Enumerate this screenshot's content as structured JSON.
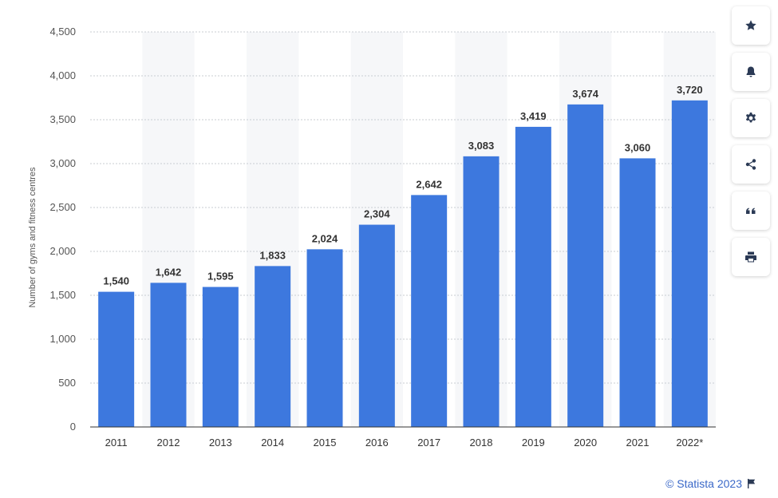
{
  "chart_data": {
    "type": "bar",
    "categories": [
      "2011",
      "2012",
      "2013",
      "2014",
      "2015",
      "2016",
      "2017",
      "2018",
      "2019",
      "2020",
      "2021",
      "2022*"
    ],
    "series": [
      {
        "values": [
          1540,
          1642,
          1595,
          1833,
          2024,
          2304,
          2642,
          3083,
          3419,
          3674,
          3060,
          3720
        ]
      }
    ],
    "data_labels": [
      "1,540",
      "1,642",
      "1,595",
      "1,833",
      "2,024",
      "2,304",
      "2,642",
      "3,083",
      "3,419",
      "3,674",
      "3,060",
      "3,720"
    ],
    "ylabel": "Number of gyms and fitness centres",
    "xlabel": "",
    "ylim": [
      0,
      4500
    ],
    "yticks": [
      0,
      500,
      1000,
      1500,
      2000,
      2500,
      3000,
      3500,
      4000,
      4500
    ],
    "ytick_labels": [
      "0",
      "500",
      "1,000",
      "1,500",
      "2,000",
      "2,500",
      "3,000",
      "3,500",
      "4,000",
      "4,500"
    ],
    "grid": true,
    "bar_color": "#3d78de"
  },
  "toolbar": {
    "buttons": [
      {
        "icon": "star-icon"
      },
      {
        "icon": "bell-icon"
      },
      {
        "icon": "gear-icon"
      },
      {
        "icon": "share-icon"
      },
      {
        "icon": "quote-icon"
      },
      {
        "icon": "print-icon"
      }
    ]
  },
  "credit": {
    "text": "© Statista 2023",
    "icon": "flag-icon"
  }
}
